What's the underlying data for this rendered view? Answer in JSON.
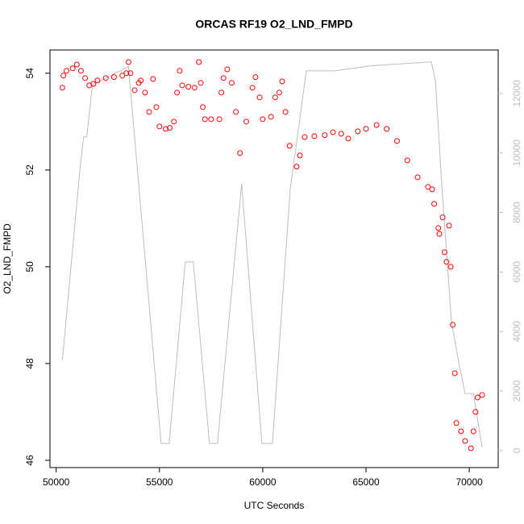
{
  "chart_data": {
    "type": "scatter",
    "title": "ORCAS RF19 O2_LND_FMPD",
    "x_label": "UTC Seconds",
    "y_label": "O2_LND_FMPD",
    "xlim": [
      49700,
      71400
    ],
    "xticks": [
      50000,
      55000,
      60000,
      65000,
      70000
    ],
    "ylim": [
      45.85,
      54.48
    ],
    "yticks": [
      46,
      48,
      50,
      52,
      54
    ],
    "y2lim": [
      -570,
      13460
    ],
    "y2ticks": [
      0,
      2000,
      4000,
      6000,
      8000,
      10000,
      12000
    ],
    "y2_color": "#bebebe",
    "series": [
      {
        "type": "scatter",
        "color": "#ff0000",
        "x": [
          50300,
          50350,
          50500,
          50800,
          51000,
          51200,
          51400,
          51600,
          51800,
          52000,
          52400,
          52800,
          53200,
          53400,
          53500,
          53600,
          53800,
          54000,
          54100,
          54300,
          54500,
          54690,
          54850,
          55000,
          55300,
          55500,
          55700,
          55850,
          55980,
          56100,
          56400,
          56700,
          56910,
          57000,
          57100,
          57200,
          57500,
          57900,
          58000,
          58100,
          58280,
          58500,
          58700,
          58900,
          59200,
          59500,
          59650,
          59850,
          60000,
          60400,
          60600,
          60800,
          60940,
          61100,
          61300,
          61640,
          61800,
          62030,
          62500,
          63000,
          63400,
          63800,
          64140,
          64600,
          65000,
          65510,
          66000,
          66500,
          67000,
          67500,
          68000,
          68200,
          68300,
          68500,
          68550,
          68710,
          68800,
          68900,
          69020,
          69100,
          69200,
          69300,
          69375,
          69600,
          69800,
          70080,
          70200,
          70300,
          70400,
          70620
        ],
        "values": [
          53.7,
          53.95,
          54.05,
          54.1,
          54.18,
          54.05,
          53.9,
          53.75,
          53.78,
          53.85,
          53.9,
          53.92,
          53.95,
          54.0,
          54.23,
          54.0,
          53.65,
          53.8,
          53.85,
          53.6,
          53.2,
          53.88,
          53.3,
          52.9,
          52.85,
          52.87,
          53.0,
          53.6,
          54.05,
          53.75,
          53.72,
          53.7,
          54.23,
          53.8,
          53.3,
          53.05,
          53.05,
          53.05,
          53.6,
          53.9,
          54.08,
          53.8,
          53.2,
          52.35,
          53.0,
          53.7,
          53.92,
          53.5,
          53.05,
          53.1,
          53.5,
          53.6,
          53.83,
          53.2,
          52.5,
          52.07,
          52.3,
          52.68,
          52.7,
          52.72,
          52.78,
          52.75,
          52.65,
          52.8,
          52.85,
          52.93,
          52.85,
          52.6,
          52.2,
          51.85,
          51.65,
          51.6,
          51.3,
          50.8,
          50.68,
          51.02,
          50.3,
          50.1,
          50.85,
          50.0,
          48.8,
          47.8,
          46.77,
          46.6,
          46.4,
          46.25,
          46.6,
          47.0,
          47.3,
          47.35
        ]
      },
      {
        "type": "line",
        "axis": "y2",
        "color": "#bebebe",
        "x": [
          50300,
          51170,
          51330,
          51480,
          51760,
          53500,
          55080,
          55470,
          56250,
          56640,
          57420,
          57810,
          58980,
          59960,
          60470,
          61330,
          62110,
          63480,
          65230,
          68160,
          68360,
          68670,
          69140,
          69530,
          69800,
          70200,
          70620
        ],
        "values": [
          3035,
          9590,
          10540,
          10540,
          12300,
          12900,
          240,
          240,
          6340,
          6340,
          240,
          240,
          8970,
          240,
          240,
          8780,
          12760,
          12760,
          12930,
          13060,
          12440,
          8910,
          4310,
          2820,
          1920,
          1920,
          110
        ]
      }
    ]
  }
}
